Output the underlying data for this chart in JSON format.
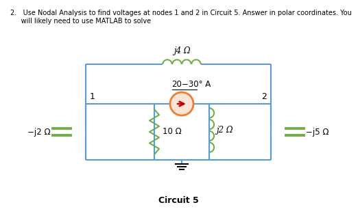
{
  "circuit_label": "Circuit 5",
  "node1_label": "1",
  "node2_label": "2",
  "source_label_pre": "20",
  "source_label_angle": "30",
  "source_label_post": " A",
  "inductor_top_label": "j4 Ω",
  "resistor_left_label": "−j2 Ω",
  "resistor_mid_label": "10 Ω",
  "inductor_mid_label": "j2 Ω",
  "capacitor_right_label": "−j5 Ω",
  "bg_color": "#ffffff",
  "wire_color": "#5b9bd5",
  "component_color": "#70ad47",
  "source_fill": "#fce4d6",
  "source_border": "#ed7d31",
  "arrow_color": "#c00000",
  "text_color": "#000000",
  "title_line1": "2.   Use Nodal Analysis to find voltages at nodes 1 and 2 in Circuit 5. Answer in polar coordinates. You",
  "title_line2": "     will likely need to use MATLAB to solve"
}
